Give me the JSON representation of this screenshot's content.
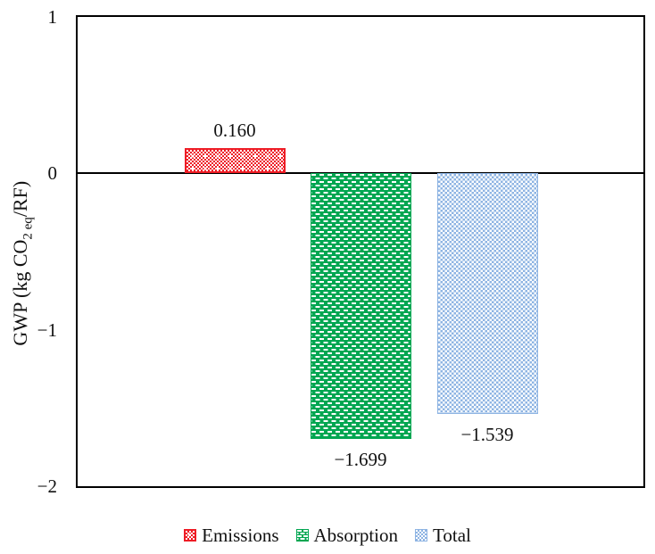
{
  "chart_data": {
    "type": "bar",
    "title": "",
    "ylabel": "GWP (kg CO2 eq/RF)",
    "ylabel_parts": {
      "prefix": "GWP (kg CO",
      "subscript": "2 eq",
      "suffix": "/RF)"
    },
    "categories": [
      "Emissions",
      "Absorption",
      "Total"
    ],
    "values": [
      0.16,
      -1.699,
      -1.539
    ],
    "value_labels": [
      "0.160",
      "−1.699",
      "−1.539"
    ],
    "ylim": [
      -2,
      1
    ],
    "yticks": [
      {
        "value": 1,
        "label": "1"
      },
      {
        "value": 0,
        "label": "0"
      },
      {
        "value": -1,
        "label": "−1"
      },
      {
        "value": -2,
        "label": "−2"
      }
    ],
    "grid": false,
    "legend_position": "bottom",
    "legend": [
      {
        "label": "Emissions",
        "color": "#ee1c25",
        "pattern": "dotted-diamond"
      },
      {
        "label": "Absorption",
        "color": "#00a651",
        "pattern": "dashed-brick"
      },
      {
        "label": "Total",
        "color": "#8eb4e3",
        "pattern": "small-checker"
      }
    ]
  }
}
